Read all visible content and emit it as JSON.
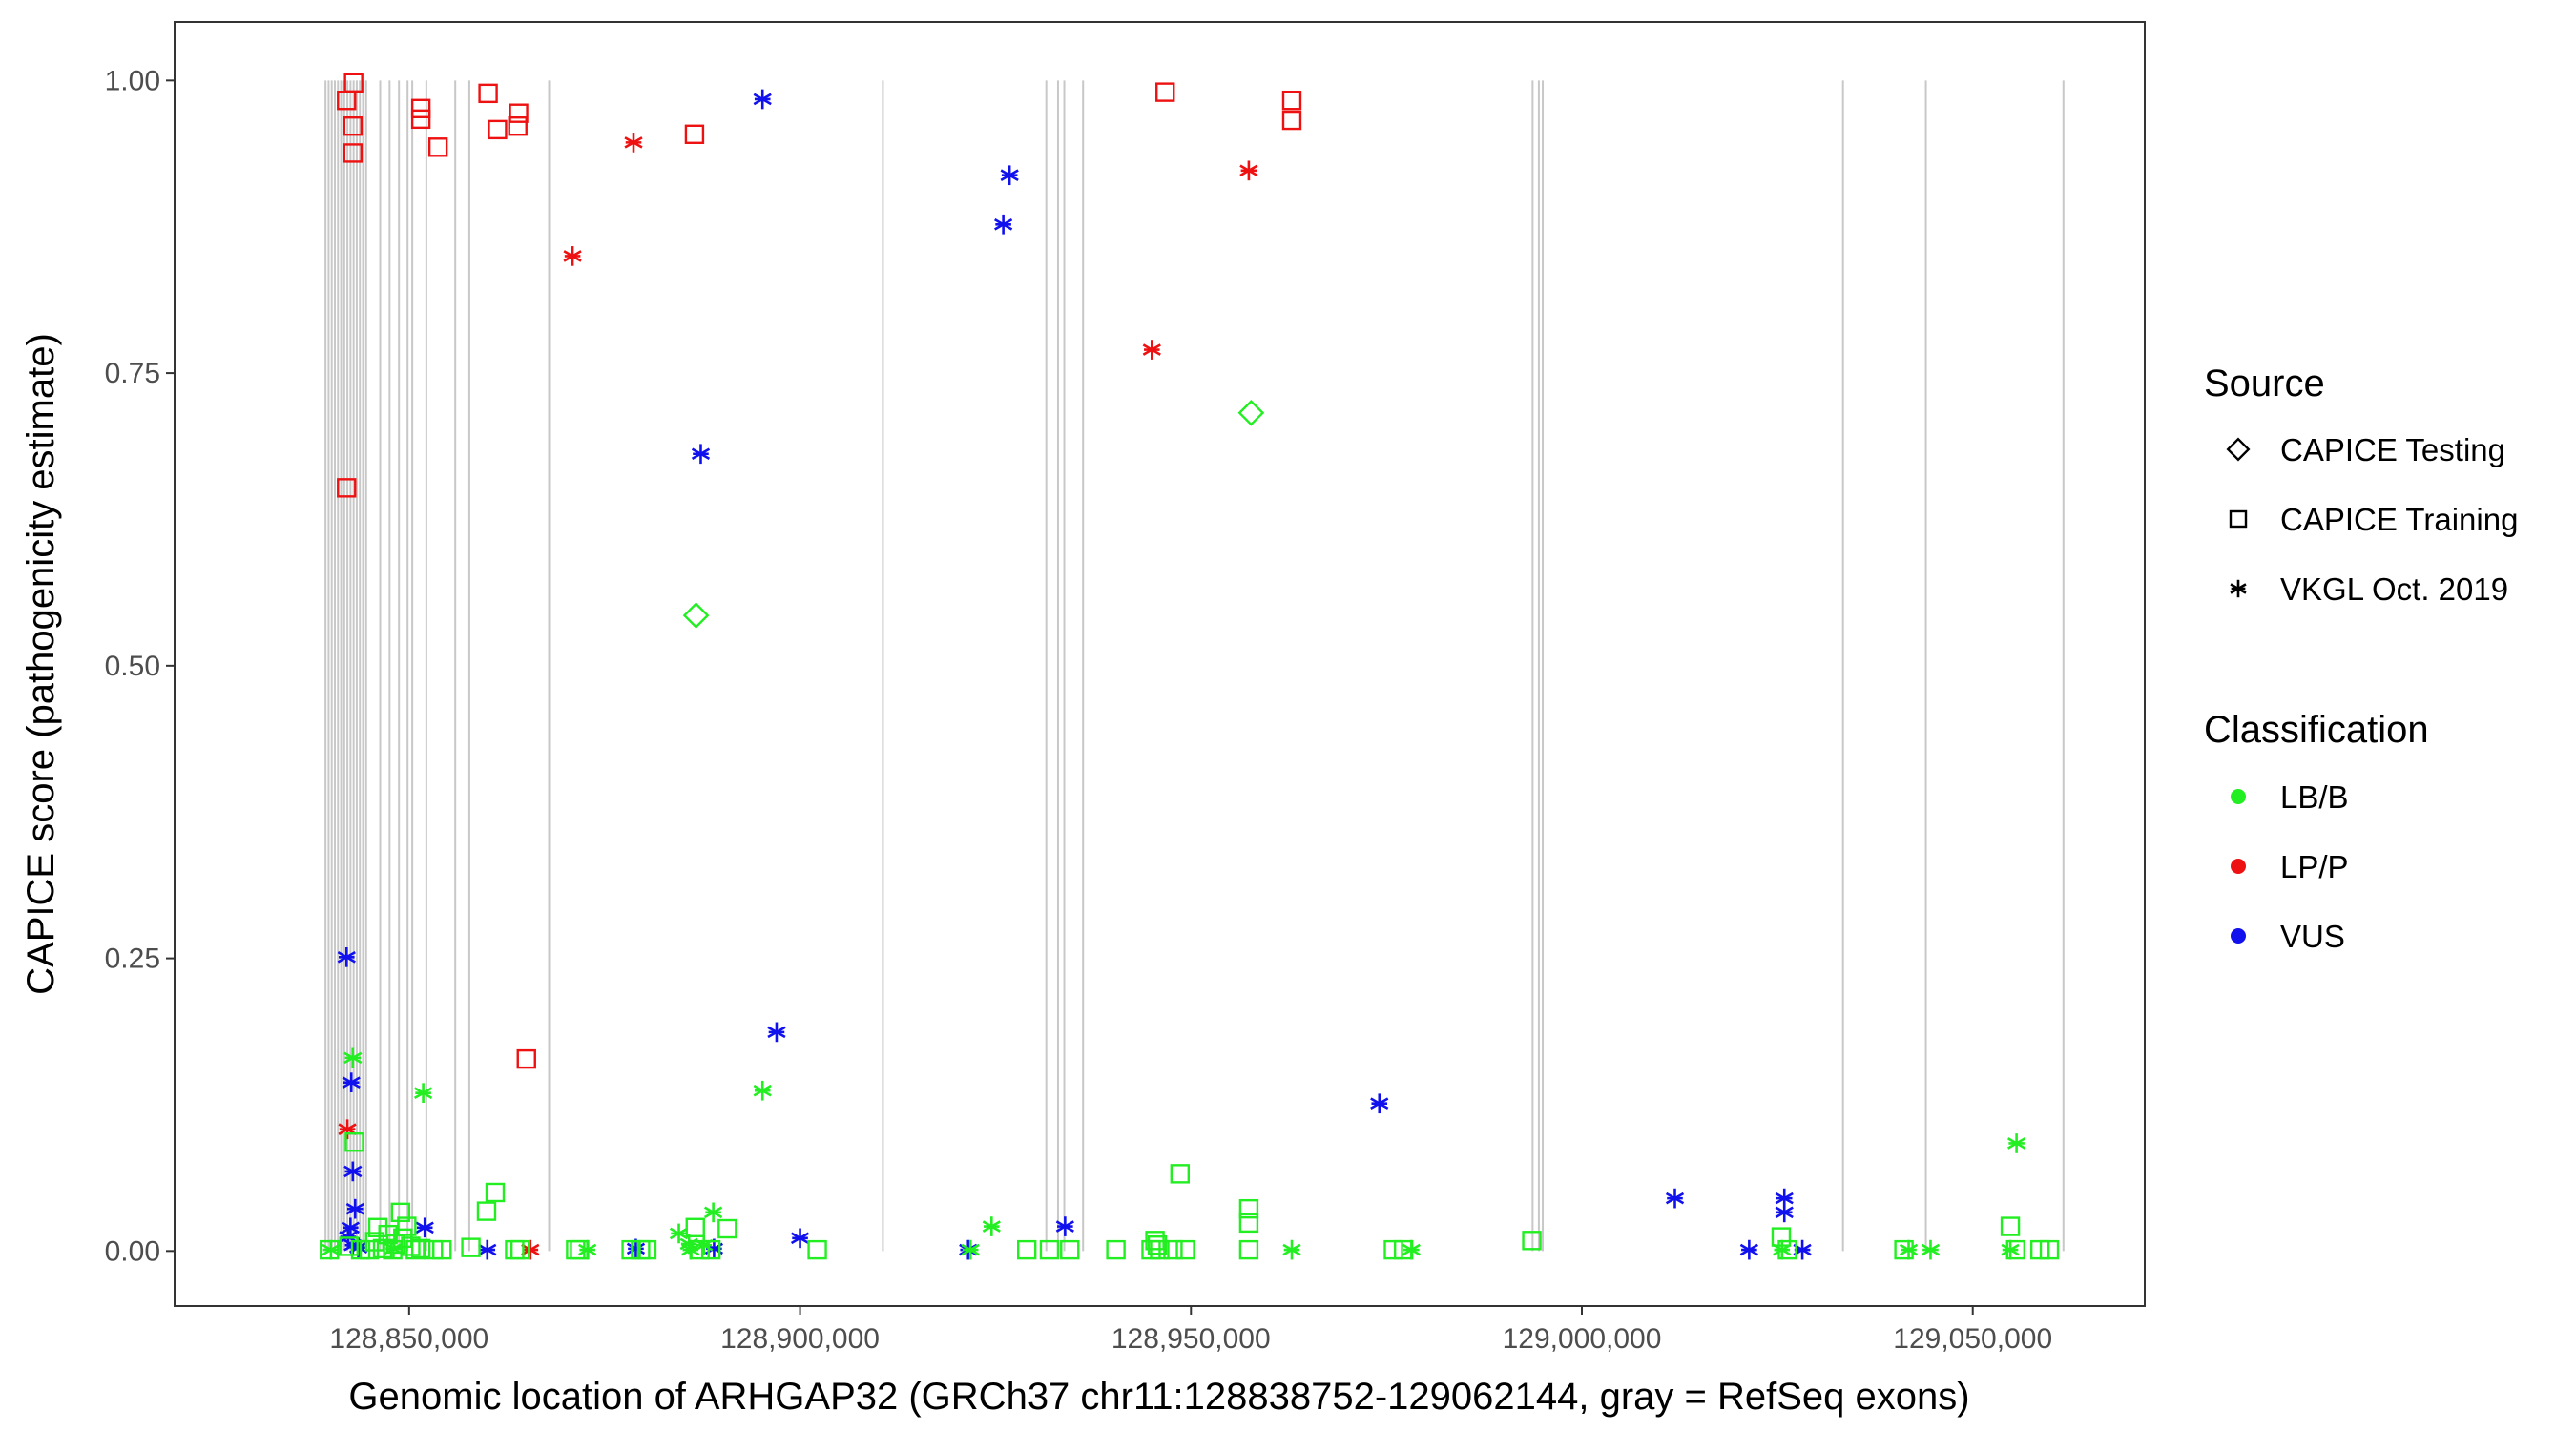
{
  "chart_data": {
    "type": "scatter",
    "title": "",
    "xlabel": "Genomic location of ARHGAP32 (GRCh37 chr11:128838752-129062144, gray = RefSeq exons)",
    "ylabel": "CAPICE score (pathogenicity estimate)",
    "xlim": [
      128820000,
      129072000
    ],
    "ylim": [
      -0.047,
      1.05
    ],
    "x_ticks": [
      128850000,
      128900000,
      128950000,
      129000000,
      129050000
    ],
    "x_tick_labels": [
      "128,850,000",
      "128,900,000",
      "128,950,000",
      "129,000,000",
      "129,050,000"
    ],
    "y_ticks": [
      0,
      0.25,
      0.5,
      0.75,
      1
    ],
    "y_tick_labels": [
      "0.00",
      "0.25",
      "0.50",
      "0.75",
      "1.00"
    ],
    "grid": false,
    "exons": {
      "color": "#c8c8c8",
      "y_range": [
        0,
        1
      ],
      "x": [
        128839300,
        128839700,
        128840100,
        128840500,
        128840900,
        128841300,
        128841700,
        128842100,
        128842500,
        128842900,
        128843300,
        128843700,
        128844100,
        128844500,
        128846300,
        128847500,
        128848700,
        128849800,
        128850400,
        128852200,
        128855900,
        128857700,
        128867900,
        128910600,
        128931500,
        128933000,
        128933800,
        128936200,
        128993700,
        128994500,
        128995000,
        129033400,
        129044000,
        129061600
      ]
    },
    "legends": {
      "source": {
        "title": "Source",
        "items": [
          {
            "label": "CAPICE Testing",
            "shape": "diamond"
          },
          {
            "label": "CAPICE Training",
            "shape": "square"
          },
          {
            "label": "VKGL Oct. 2019",
            "shape": "asterisk"
          }
        ]
      },
      "classification": {
        "title": "Classification",
        "items": [
          {
            "label": "LB/B",
            "color": "#22ee22"
          },
          {
            "label": "LP/P",
            "color": "#ee1111"
          },
          {
            "label": "VUS",
            "color": "#1111ee"
          }
        ]
      }
    },
    "series": [
      {
        "source": "CAPICE Training",
        "classification": "LP/P",
        "shape": "square",
        "color": "#ee1111",
        "points": [
          [
            128842000,
            0.983
          ],
          [
            128842900,
            0.998
          ],
          [
            128842800,
            0.961
          ],
          [
            128842800,
            0.938
          ],
          [
            128842000,
            0.652
          ],
          [
            128851500,
            0.976
          ],
          [
            128851500,
            0.967
          ],
          [
            128853700,
            0.943
          ],
          [
            128860100,
            0.989
          ],
          [
            128861300,
            0.958
          ],
          [
            128864000,
            0.972
          ],
          [
            128863900,
            0.961
          ],
          [
            128865000,
            0.164
          ],
          [
            128886500,
            0.954
          ],
          [
            128946700,
            0.99
          ],
          [
            128962900,
            0.983
          ],
          [
            128962900,
            0.966
          ]
        ]
      },
      {
        "source": "VKGL Oct. 2019",
        "classification": "LP/P",
        "shape": "asterisk",
        "color": "#ee1111",
        "points": [
          [
            128842100,
            0.104
          ],
          [
            128865500,
            0.001
          ],
          [
            128870900,
            0.85
          ],
          [
            128878700,
            0.947
          ],
          [
            128945000,
            0.77
          ],
          [
            128957400,
            0.923
          ]
        ]
      },
      {
        "source": "VKGL Oct. 2019",
        "classification": "VUS",
        "shape": "asterisk",
        "color": "#1111ee",
        "points": [
          [
            128842000,
            0.251
          ],
          [
            128842600,
            0.144
          ],
          [
            128842800,
            0.068
          ],
          [
            128843100,
            0.036
          ],
          [
            128842500,
            0.02
          ],
          [
            128842200,
            0.012
          ],
          [
            128842800,
            0.005
          ],
          [
            128843500,
            0.003
          ],
          [
            128852000,
            0.02
          ],
          [
            128860000,
            0.001
          ],
          [
            128879000,
            0.002
          ],
          [
            128889000,
            0.002
          ],
          [
            128887300,
            0.681
          ],
          [
            128895200,
            0.984
          ],
          [
            128897000,
            0.187
          ],
          [
            128900000,
            0.011
          ],
          [
            128921500,
            0.001
          ],
          [
            128926000,
            0.877
          ],
          [
            128926800,
            0.919
          ],
          [
            128933900,
            0.021
          ],
          [
            128974100,
            0.126
          ],
          [
            129011900,
            0.045
          ],
          [
            129021400,
            0.001
          ],
          [
            129025900,
            0.045
          ],
          [
            129025900,
            0.033
          ],
          [
            129028200,
            0.001
          ]
        ]
      },
      {
        "source": "VKGL Oct. 2019",
        "classification": "LB/B",
        "shape": "asterisk",
        "color": "#22ee22",
        "points": [
          [
            128842800,
            0.165
          ],
          [
            128840000,
            0.001
          ],
          [
            128848000,
            0.002
          ],
          [
            128851800,
            0.135
          ],
          [
            128872800,
            0.001
          ],
          [
            128884500,
            0.015
          ],
          [
            128885800,
            0.006
          ],
          [
            128886000,
            0.001
          ],
          [
            128887700,
            0.005
          ],
          [
            128888900,
            0.033
          ],
          [
            128895200,
            0.137
          ],
          [
            128921800,
            0.001
          ],
          [
            128924500,
            0.021
          ],
          [
            128962900,
            0.001
          ],
          [
            128978200,
            0.001
          ],
          [
            129025600,
            0.001
          ],
          [
            129041800,
            0.001
          ],
          [
            129044600,
            0.001
          ],
          [
            129054800,
            0.001
          ],
          [
            129055600,
            0.092
          ]
        ]
      },
      {
        "source": "CAPICE Training",
        "classification": "LB/B",
        "shape": "square",
        "color": "#22ee22",
        "points": [
          [
            128839800,
            0.001
          ],
          [
            128842300,
            0.004
          ],
          [
            128843000,
            0.093
          ],
          [
            128843800,
            0.001
          ],
          [
            128844900,
            0.001
          ],
          [
            128845600,
            0.008
          ],
          [
            128846000,
            0.02
          ],
          [
            128846600,
            0.002
          ],
          [
            128847300,
            0.014
          ],
          [
            128847900,
            0.001
          ],
          [
            128848300,
            0.006
          ],
          [
            128848900,
            0.033
          ],
          [
            128849200,
            0.011
          ],
          [
            128849700,
            0.021
          ],
          [
            128850200,
            0.004
          ],
          [
            128850800,
            0.001
          ],
          [
            128851500,
            0.002
          ],
          [
            128853100,
            0.001
          ],
          [
            128854200,
            0.001
          ],
          [
            128857900,
            0.003
          ],
          [
            128859900,
            0.034
          ],
          [
            128861000,
            0.05
          ],
          [
            128863500,
            0.001
          ],
          [
            128864200,
            0.001
          ],
          [
            128871300,
            0.001
          ],
          [
            128871800,
            0.001
          ],
          [
            128878400,
            0.001
          ],
          [
            128879600,
            0.001
          ],
          [
            128880400,
            0.001
          ],
          [
            128886600,
            0.02
          ],
          [
            128887200,
            0.001
          ],
          [
            128888600,
            0.001
          ],
          [
            128890700,
            0.019
          ],
          [
            128902200,
            0.001
          ],
          [
            128929000,
            0.001
          ],
          [
            128931900,
            0.001
          ],
          [
            128934500,
            0.001
          ],
          [
            128940400,
            0.001
          ],
          [
            128944900,
            0.001
          ],
          [
            128945400,
            0.009
          ],
          [
            128945700,
            0.005
          ],
          [
            128946000,
            0.001
          ],
          [
            128947700,
            0.001
          ],
          [
            128948600,
            0.066
          ],
          [
            128949300,
            0.001
          ],
          [
            128957400,
            0.036
          ],
          [
            128957400,
            0.024
          ],
          [
            128957400,
            0.001
          ],
          [
            128975900,
            0.001
          ],
          [
            128977200,
            0.001
          ],
          [
            128993600,
            0.009
          ],
          [
            129025500,
            0.012
          ],
          [
            129026300,
            0.001
          ],
          [
            129041200,
            0.001
          ],
          [
            129054800,
            0.021
          ],
          [
            129055500,
            0.001
          ],
          [
            129058600,
            0.001
          ],
          [
            129059800,
            0.001
          ]
        ]
      },
      {
        "source": "CAPICE Testing",
        "classification": "LB/B",
        "shape": "diamond",
        "color": "#22ee22",
        "points": [
          [
            128886700,
            0.543
          ],
          [
            128957700,
            0.716
          ]
        ]
      }
    ]
  }
}
